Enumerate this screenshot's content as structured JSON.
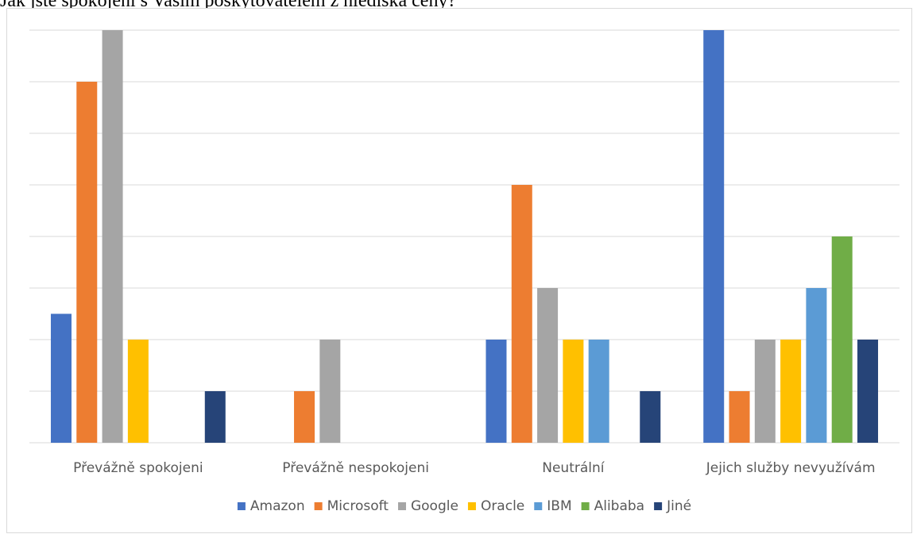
{
  "title": "Jak jste spokojeni s Vaším poskytovatelem z hlediska ceny?",
  "chart_data": {
    "type": "bar",
    "title": "",
    "xlabel": "",
    "ylabel": "",
    "categories": [
      "Převážně spokojeni",
      "Převážně nespokojeni",
      "Neutrální",
      "Jejich služby nevyužívám"
    ],
    "ylim": [
      0,
      8
    ],
    "grid": true,
    "legend_position": "bottom",
    "series": [
      {
        "name": "Amazon",
        "color": "#4472C4",
        "values": [
          2.5,
          0,
          2,
          8
        ]
      },
      {
        "name": "Microsoft",
        "color": "#ED7D31",
        "values": [
          7,
          1,
          5,
          1
        ]
      },
      {
        "name": "Google",
        "color": "#A5A5A5",
        "values": [
          8,
          2,
          3,
          2
        ]
      },
      {
        "name": "Oracle",
        "color": "#FFC000",
        "values": [
          2,
          0,
          2,
          2
        ]
      },
      {
        "name": "IBM",
        "color": "#5B9BD5",
        "values": [
          0,
          0,
          2,
          3
        ]
      },
      {
        "name": "Alibaba",
        "color": "#70AD47",
        "values": [
          0,
          0,
          0,
          4
        ]
      },
      {
        "name": "Jiné",
        "color": "#264478",
        "values": [
          1,
          0,
          1,
          2
        ]
      }
    ]
  }
}
